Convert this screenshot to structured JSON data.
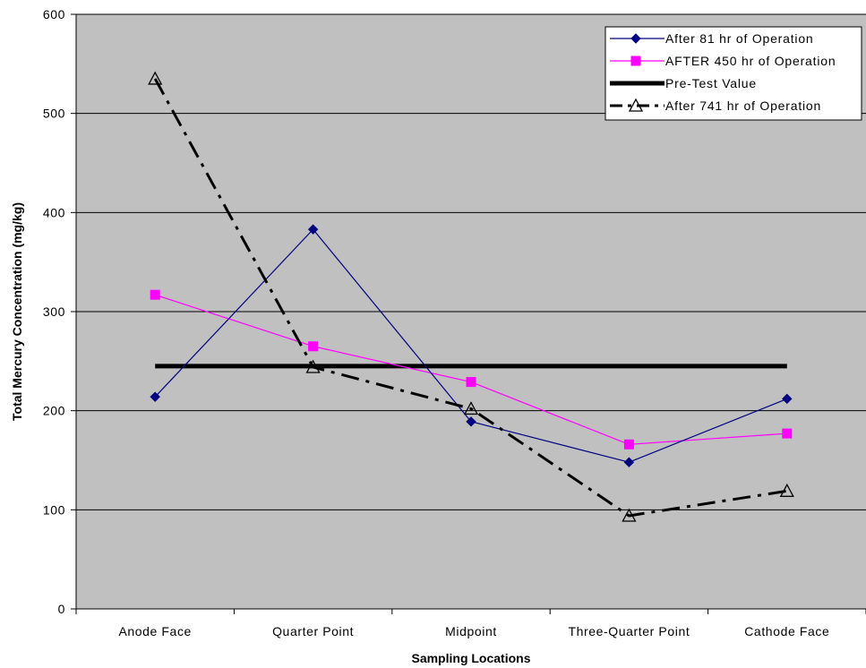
{
  "chart_data": {
    "type": "line",
    "title": "",
    "xlabel": "Sampling Locations",
    "ylabel": "Total Mercury Concentration (mg/kg)",
    "categories": [
      "Anode Face",
      "Quarter Point",
      "Midpoint",
      "Three-Quarter Point",
      "Cathode Face"
    ],
    "ylim": [
      0,
      600
    ],
    "yticks": [
      0,
      100,
      200,
      300,
      400,
      500,
      600
    ],
    "grid": true,
    "legend_position": "top-right",
    "plot_background": "#c0c0c0",
    "series": [
      {
        "name": "After 81 hr of Operation",
        "values": [
          214,
          383,
          189,
          148,
          212
        ],
        "color": "#000080",
        "marker": "diamond",
        "line_style": "solid"
      },
      {
        "name": "AFTER 450 hr of Operation",
        "values": [
          317,
          265,
          229,
          166,
          177
        ],
        "color": "#ff00ff",
        "marker": "square",
        "line_style": "solid"
      },
      {
        "name": "Pre-Test Value",
        "values": [
          245,
          245,
          245,
          245,
          245
        ],
        "color": "#000000",
        "marker": "none",
        "line_style": "thick-solid"
      },
      {
        "name": "After 741 hr of Operation",
        "values": [
          535,
          244,
          202,
          94,
          119
        ],
        "color": "#000000",
        "marker": "triangle-open",
        "line_style": "dash-dot"
      }
    ]
  }
}
